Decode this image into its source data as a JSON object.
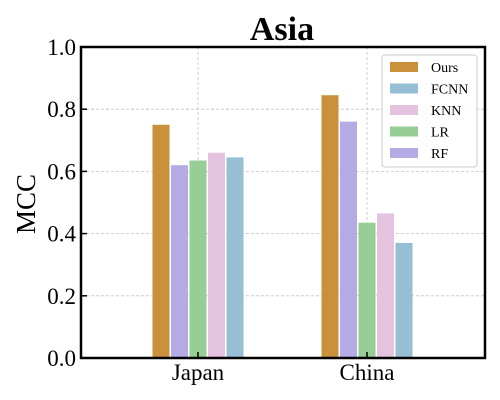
{
  "chart_data": {
    "type": "bar",
    "title": "Asia",
    "xlabel": "",
    "ylabel": "MCC",
    "ylim": [
      0.0,
      1.0
    ],
    "yticks": [
      "0.0",
      "0.2",
      "0.4",
      "0.6",
      "0.8",
      "1.0"
    ],
    "categories": [
      "Japan",
      "China"
    ],
    "grid": true,
    "legend_position": "top-right",
    "legend_order": [
      "Ours",
      "FCNN",
      "KNN",
      "LR",
      "RF"
    ],
    "series": [
      {
        "name": "Ours",
        "color": "#C8913A",
        "values": [
          0.75,
          0.845
        ]
      },
      {
        "name": "RF",
        "color": "#B4ABE4",
        "values": [
          0.62,
          0.76
        ]
      },
      {
        "name": "LR",
        "color": "#96CE96",
        "values": [
          0.635,
          0.435
        ]
      },
      {
        "name": "KNN",
        "color": "#E4C3DE",
        "values": [
          0.66,
          0.465
        ]
      },
      {
        "name": "FCNN",
        "color": "#96BED4",
        "values": [
          0.645,
          0.37
        ]
      }
    ]
  }
}
